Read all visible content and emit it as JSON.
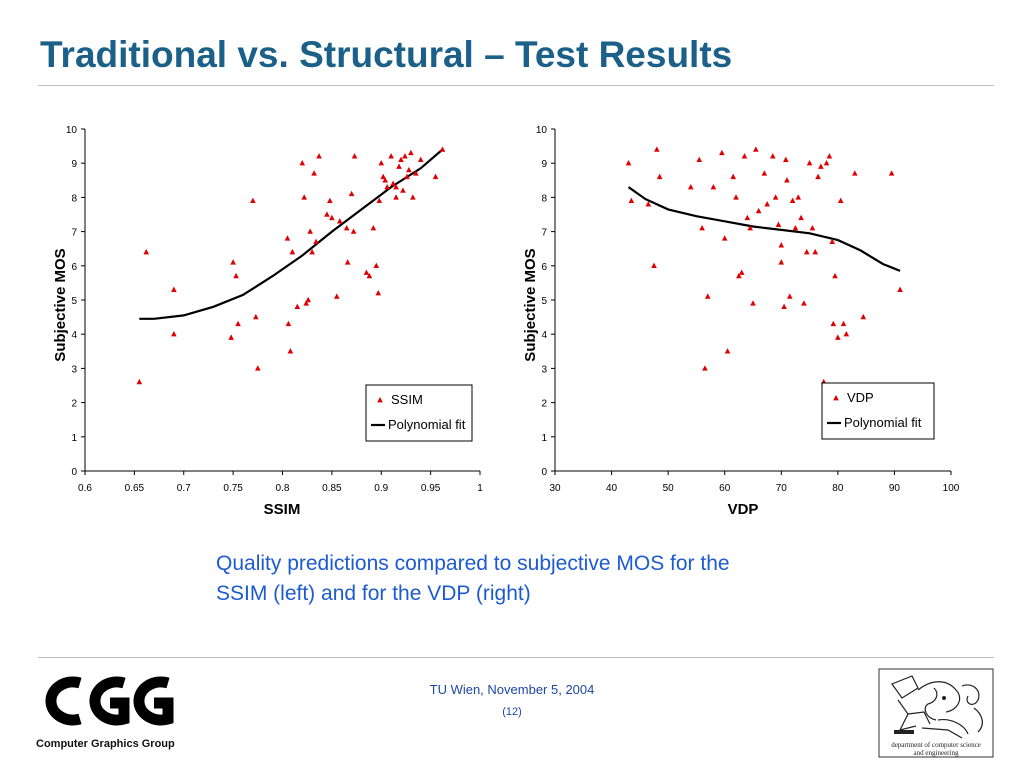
{
  "slide": {
    "title": "Traditional vs. Structural – Test Results",
    "caption_line1": "Quality predictions compared to subjective MOS for the",
    "caption_line2": "SSIM (left) and for the VDP (right)",
    "footer_date": "TU Wien, November 5, 2004",
    "footer_page": "(12)",
    "group_name": "Computer Graphics Group",
    "dept_caption_line1": "department of computer science",
    "dept_caption_line2": "and engineering",
    "colors": {
      "title": "#1b6088",
      "caption": "#1d5bd1",
      "marker": "#e00000",
      "fit": "#000000"
    }
  },
  "chart_data": [
    {
      "type": "scatter",
      "xlabel": "SSIM",
      "ylabel": "Subjective MOS",
      "xlim": [
        0.6,
        1
      ],
      "ylim": [
        0,
        10
      ],
      "xticks": [
        "0.6",
        "0.65",
        "0.7",
        "0.75",
        "0.8",
        "0.85",
        "0.9",
        "0.95",
        "1"
      ],
      "yticks": [
        "0",
        "1",
        "2",
        "3",
        "4",
        "5",
        "6",
        "7",
        "8",
        "9",
        "10"
      ],
      "legend_position": "bottom-right",
      "series": [
        {
          "name": "SSIM",
          "marker": "triangle",
          "points": [
            [
              0.655,
              2.6
            ],
            [
              0.662,
              6.4
            ],
            [
              0.69,
              5.3
            ],
            [
              0.69,
              4.0
            ],
            [
              0.748,
              3.9
            ],
            [
              0.75,
              6.1
            ],
            [
              0.753,
              5.7
            ],
            [
              0.755,
              4.3
            ],
            [
              0.77,
              7.9
            ],
            [
              0.773,
              4.5
            ],
            [
              0.775,
              3.0
            ],
            [
              0.805,
              6.8
            ],
            [
              0.806,
              4.3
            ],
            [
              0.808,
              3.5
            ],
            [
              0.81,
              6.4
            ],
            [
              0.815,
              4.8
            ],
            [
              0.82,
              9.0
            ],
            [
              0.822,
              8.0
            ],
            [
              0.824,
              4.9
            ],
            [
              0.826,
              5.0
            ],
            [
              0.828,
              7.0
            ],
            [
              0.83,
              6.4
            ],
            [
              0.832,
              8.7
            ],
            [
              0.834,
              6.7
            ],
            [
              0.837,
              9.2
            ],
            [
              0.845,
              7.5
            ],
            [
              0.848,
              7.9
            ],
            [
              0.85,
              7.4
            ],
            [
              0.855,
              5.1
            ],
            [
              0.858,
              7.3
            ],
            [
              0.865,
              7.1
            ],
            [
              0.866,
              6.1
            ],
            [
              0.87,
              8.1
            ],
            [
              0.872,
              7.0
            ],
            [
              0.873,
              9.2
            ],
            [
              0.885,
              5.8
            ],
            [
              0.888,
              5.7
            ],
            [
              0.892,
              7.1
            ],
            [
              0.895,
              6.0
            ],
            [
              0.897,
              5.2
            ],
            [
              0.898,
              7.9
            ],
            [
              0.9,
              9.0
            ],
            [
              0.902,
              8.6
            ],
            [
              0.904,
              8.5
            ],
            [
              0.906,
              8.3
            ],
            [
              0.91,
              9.2
            ],
            [
              0.912,
              8.4
            ],
            [
              0.915,
              8.3
            ],
            [
              0.915,
              8.0
            ],
            [
              0.918,
              8.9
            ],
            [
              0.92,
              9.1
            ],
            [
              0.922,
              8.2
            ],
            [
              0.924,
              9.2
            ],
            [
              0.926,
              8.6
            ],
            [
              0.928,
              8.8
            ],
            [
              0.93,
              9.3
            ],
            [
              0.932,
              8.0
            ],
            [
              0.935,
              8.7
            ],
            [
              0.94,
              9.1
            ],
            [
              0.955,
              8.6
            ],
            [
              0.962,
              9.4
            ]
          ]
        },
        {
          "name": "Polynomial fit",
          "line": [
            [
              0.655,
              4.45
            ],
            [
              0.67,
              4.45
            ],
            [
              0.7,
              4.55
            ],
            [
              0.73,
              4.8
            ],
            [
              0.76,
              5.15
            ],
            [
              0.79,
              5.7
            ],
            [
              0.82,
              6.3
            ],
            [
              0.85,
              7.0
            ],
            [
              0.88,
              7.65
            ],
            [
              0.91,
              8.3
            ],
            [
              0.94,
              8.85
            ],
            [
              0.962,
              9.4
            ]
          ]
        }
      ]
    },
    {
      "type": "scatter",
      "xlabel": "VDP",
      "ylabel": "Subjective MOS",
      "xlim": [
        30,
        100
      ],
      "ylim": [
        0,
        10
      ],
      "xticks": [
        "30",
        "40",
        "50",
        "60",
        "70",
        "80",
        "90",
        "100"
      ],
      "yticks": [
        "0",
        "1",
        "2",
        "3",
        "4",
        "5",
        "6",
        "7",
        "8",
        "9",
        "10"
      ],
      "legend_position": "bottom-right",
      "series": [
        {
          "name": "VDP",
          "marker": "triangle",
          "points": [
            [
              43,
              9.0
            ],
            [
              43.5,
              7.9
            ],
            [
              46.5,
              7.8
            ],
            [
              47.5,
              6.0
            ],
            [
              48,
              9.4
            ],
            [
              48.5,
              8.6
            ],
            [
              54,
              8.3
            ],
            [
              55.5,
              9.1
            ],
            [
              56,
              7.1
            ],
            [
              56.5,
              3.0
            ],
            [
              57,
              5.1
            ],
            [
              58,
              8.3
            ],
            [
              59.5,
              9.3
            ],
            [
              60,
              6.8
            ],
            [
              60.5,
              3.5
            ],
            [
              61.5,
              8.6
            ],
            [
              62,
              8.0
            ],
            [
              62.5,
              5.7
            ],
            [
              63,
              5.8
            ],
            [
              63.5,
              9.2
            ],
            [
              64,
              7.4
            ],
            [
              64.5,
              7.1
            ],
            [
              65,
              4.9
            ],
            [
              65.5,
              9.4
            ],
            [
              66,
              7.6
            ],
            [
              67,
              8.7
            ],
            [
              67.5,
              7.8
            ],
            [
              68.5,
              9.2
            ],
            [
              69,
              8.0
            ],
            [
              69.5,
              7.2
            ],
            [
              70,
              6.6
            ],
            [
              70,
              6.1
            ],
            [
              70.5,
              4.8
            ],
            [
              70.8,
              9.1
            ],
            [
              71,
              8.5
            ],
            [
              71.5,
              5.1
            ],
            [
              72,
              7.9
            ],
            [
              72.5,
              7.1
            ],
            [
              73,
              8.0
            ],
            [
              73.5,
              7.4
            ],
            [
              74,
              4.9
            ],
            [
              74.5,
              6.4
            ],
            [
              75,
              9.0
            ],
            [
              75.5,
              7.1
            ],
            [
              76,
              6.4
            ],
            [
              76.5,
              8.6
            ],
            [
              77,
              8.9
            ],
            [
              77.5,
              2.6
            ],
            [
              78,
              9.0
            ],
            [
              78.5,
              9.2
            ],
            [
              79,
              6.7
            ],
            [
              79.2,
              4.3
            ],
            [
              79.5,
              5.7
            ],
            [
              80,
              3.9
            ],
            [
              80.5,
              7.9
            ],
            [
              81,
              4.3
            ],
            [
              81.5,
              4.0
            ],
            [
              83,
              8.7
            ],
            [
              84.5,
              4.5
            ],
            [
              89.5,
              8.7
            ],
            [
              91,
              5.3
            ]
          ]
        },
        {
          "name": "Polynomial fit",
          "line": [
            [
              43,
              8.3
            ],
            [
              46,
              7.95
            ],
            [
              50,
              7.65
            ],
            [
              55,
              7.45
            ],
            [
              60,
              7.3
            ],
            [
              65,
              7.15
            ],
            [
              70,
              7.05
            ],
            [
              75,
              6.95
            ],
            [
              80,
              6.75
            ],
            [
              84,
              6.45
            ],
            [
              88,
              6.05
            ],
            [
              91,
              5.85
            ]
          ]
        }
      ]
    }
  ]
}
